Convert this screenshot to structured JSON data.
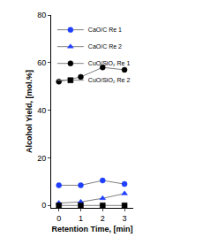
{
  "chart_data": {
    "type": "line",
    "x_label": "Retention Time, [min]",
    "y_label": "Alcohol Yield, [mol.%]",
    "x": [
      0,
      1,
      2,
      3
    ],
    "series": [
      {
        "name": "CaO/C Re 1",
        "color": "#1f3fff",
        "marker": "circle",
        "line_style": "solid",
        "values": [
          8.5,
          8.5,
          10.5,
          9
        ]
      },
      {
        "name": "CaO/C Re 2",
        "color": "#1f3fff",
        "marker": "triangle-up",
        "line_style": "solid",
        "values": [
          1,
          1.5,
          3,
          5
        ]
      },
      {
        "name": "CuO/SiO₂ Re 1",
        "color": "#000000",
        "marker": "circle",
        "line_style": "solid",
        "values": [
          52,
          54,
          58,
          57
        ]
      },
      {
        "name": "CuO/SiO₂ Re 2",
        "color": "#000000",
        "marker": "square",
        "line_style": "solid",
        "values": [
          0,
          0,
          0,
          0
        ]
      }
    ],
    "xlim": [
      -0.35,
      3.4
    ],
    "xticks": [
      0,
      1,
      2,
      3
    ],
    "ylim": [
      -1,
      80
    ],
    "yticks": [
      0,
      20,
      40,
      60,
      80
    ],
    "grid": false,
    "legend": "upper left"
  }
}
